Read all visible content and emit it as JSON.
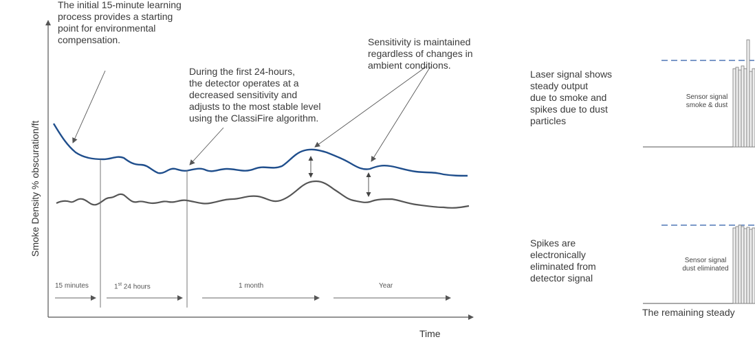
{
  "annotations": {
    "learning": [
      "The initial 15-minute learning",
      "process provides a starting",
      "point for environmental",
      "compensation."
    ],
    "first24": [
      "During the first 24-hours,",
      "the detector operates at a",
      "decreased sensitivity and",
      "adjusts to the most stable level",
      "using the ClassiFire algorithm."
    ],
    "sensitivity": [
      "Sensitivity is maintained",
      "regardless of changes in",
      "ambient conditions."
    ]
  },
  "axes": {
    "ylabel": "Smoke Density % obscuration/ft",
    "xlabel": "Time"
  },
  "phases": {
    "p1": "15 minutes",
    "p2_num": "1",
    "p2_sup": "st",
    "p2_rest": " 24 hours",
    "p3": "1 month",
    "p4": "Year"
  },
  "right_panel": {
    "laser": [
      "Laser signal shows",
      "steady output",
      "due to smoke and",
      "spikes due to dust",
      "particles"
    ],
    "sensor1": [
      "Sensor signal",
      "smoke & dust"
    ],
    "spikes": [
      "Spikes are",
      "electronically",
      "eliminated from",
      "detector signal"
    ],
    "sensor2": [
      "Sensor signal",
      "dust eliminated"
    ],
    "bottom": "The remaining steady"
  },
  "colors": {
    "alarm_curve": "#1f4e8c",
    "signal_curve": "#555555",
    "threshold": "#2a5aa8"
  }
}
